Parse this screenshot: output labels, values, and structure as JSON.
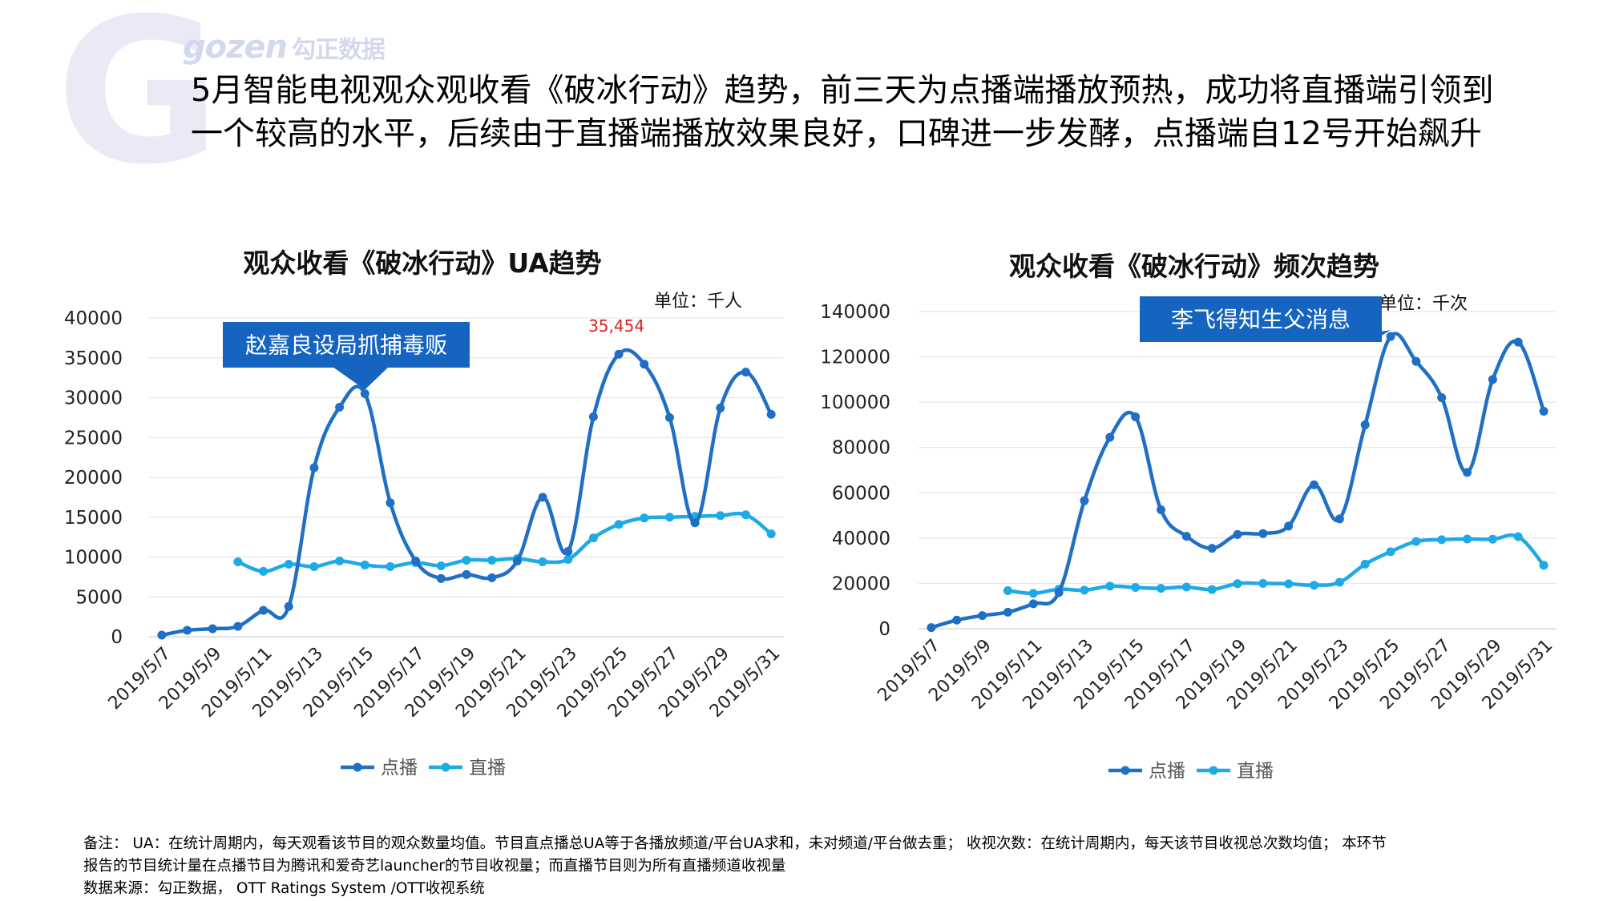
{
  "logo": {
    "mark": "G",
    "brand": "gozen",
    "brand_cn": "勾正数据"
  },
  "headline": {
    "line1": "5月智能电视观众观收看《破冰行动》趋势，前三天为点播端播放预热，成功将直播端引领到",
    "line2": "一个较高的水平，后续由于直播端播放效果良好，口碑进一步发酵，点播端自12号开始飙升"
  },
  "chart_data": [
    {
      "type": "line",
      "title": "观众收看《破冰行动》UA趋势",
      "unit": "单位：千人",
      "categories": [
        "2019/5/7",
        "2019/5/8",
        "2019/5/9",
        "2019/5/10",
        "2019/5/11",
        "2019/5/12",
        "2019/5/13",
        "2019/5/14",
        "2019/5/15",
        "2019/5/16",
        "2019/5/17",
        "2019/5/18",
        "2019/5/19",
        "2019/5/20",
        "2019/5/21",
        "2019/5/22",
        "2019/5/23",
        "2019/5/24",
        "2019/5/25",
        "2019/5/26",
        "2019/5/27",
        "2019/5/28",
        "2019/5/29",
        "2019/5/30",
        "2019/5/31"
      ],
      "tick_labels": [
        "2019/5/7",
        "2019/5/9",
        "2019/5/11",
        "2019/5/13",
        "2019/5/15",
        "2019/5/17",
        "2019/5/19",
        "2019/5/21",
        "2019/5/23",
        "2019/5/25",
        "2019/5/27",
        "2019/5/29",
        "2019/5/31"
      ],
      "ylim": [
        0,
        40000
      ],
      "yticks": [
        0,
        5000,
        10000,
        15000,
        20000,
        25000,
        30000,
        35000,
        40000
      ],
      "series": [
        {
          "name": "点播",
          "color": "#1f6fc5",
          "values": [
            200,
            800,
            1000,
            1300,
            3300,
            3800,
            21200,
            28800,
            30500,
            16800,
            9500,
            7300,
            7800,
            7400,
            9500,
            17500,
            10700,
            27600,
            35454,
            34200,
            27500,
            14300,
            28700,
            33200,
            27900
          ]
        },
        {
          "name": "直播",
          "color": "#1eaae6",
          "values": [
            null,
            null,
            null,
            9400,
            8200,
            9100,
            8800,
            9500,
            9000,
            8800,
            9300,
            8900,
            9600,
            9600,
            9800,
            9400,
            9700,
            12400,
            14100,
            14900,
            15000,
            15100,
            15200,
            15300,
            12900
          ]
        }
      ],
      "data_labels": [
        {
          "category": "2019/5/25",
          "text": "35,454",
          "color": "#e02020"
        }
      ],
      "callout": {
        "text": "赵嘉良设局抓捕毒贩",
        "target_category": "2019/5/15"
      },
      "legend": "bottom"
    },
    {
      "type": "line",
      "title": "观众收看《破冰行动》频次趋势",
      "unit": "单位：千次",
      "categories": [
        "2019/5/7",
        "2019/5/8",
        "2019/5/9",
        "2019/5/10",
        "2019/5/11",
        "2019/5/12",
        "2019/5/13",
        "2019/5/14",
        "2019/5/15",
        "2019/5/16",
        "2019/5/17",
        "2019/5/18",
        "2019/5/19",
        "2019/5/20",
        "2019/5/21",
        "2019/5/22",
        "2019/5/23",
        "2019/5/24",
        "2019/5/25",
        "2019/5/26",
        "2019/5/27",
        "2019/5/28",
        "2019/5/29",
        "2019/5/30",
        "2019/5/31"
      ],
      "tick_labels": [
        "2019/5/7",
        "2019/5/9",
        "2019/5/11",
        "2019/5/13",
        "2019/5/15",
        "2019/5/17",
        "2019/5/19",
        "2019/5/21",
        "2019/5/23",
        "2019/5/25",
        "2019/5/27",
        "2019/5/29",
        "2019/5/31"
      ],
      "ylim": [
        0,
        140000
      ],
      "yticks": [
        0,
        20000,
        40000,
        60000,
        80000,
        100000,
        120000,
        140000
      ],
      "series": [
        {
          "name": "点播",
          "color": "#1f6fc5",
          "values": [
            500,
            3800,
            5800,
            7300,
            11000,
            16000,
            56500,
            84500,
            93500,
            52500,
            40800,
            35500,
            41600,
            42000,
            45300,
            63500,
            48500,
            90000,
            129000,
            118000,
            102000,
            69000,
            110000,
            126500,
            96000
          ]
        },
        {
          "name": "直播",
          "color": "#1eaae6",
          "values": [
            null,
            null,
            null,
            16800,
            15600,
            17400,
            17000,
            18800,
            18200,
            17800,
            18400,
            17300,
            19900,
            20000,
            19800,
            19200,
            20500,
            28500,
            34000,
            38500,
            39300,
            39600,
            39500,
            40600,
            28000
          ]
        }
      ],
      "callout": {
        "text": "李飞得知生父消息",
        "target_category": "2019/5/25"
      },
      "legend": "bottom"
    }
  ],
  "footnote": {
    "line1": "备注：  UA：在统计周期内，每天观看该节目的观众数量均值。节目直点播总UA等于各播放频道/平台UA求和，未对频道/平台做去重； 收视次数：在统计周期内，每天该节目收视总次数均值； 本环节",
    "line2": "报告的节目统计量在点播节目为腾讯和爱奇艺launcher的节目收视量；而直播节目则为所有直播频道收视量",
    "line3": "数据来源：勾正数据， OTT Ratings System /OTT收视系统"
  }
}
